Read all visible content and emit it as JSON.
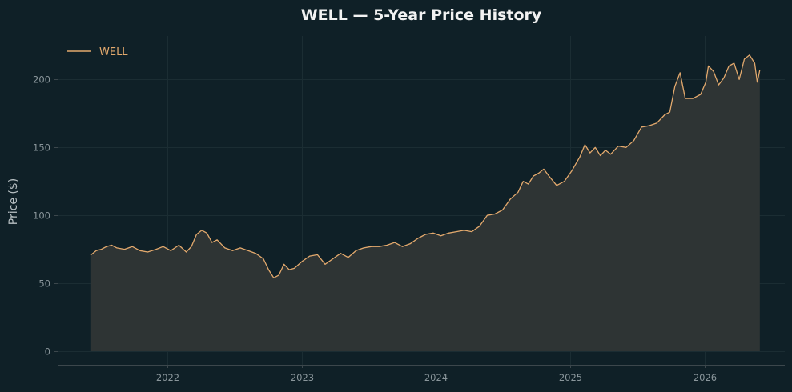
{
  "chart_data": {
    "type": "area",
    "title": "WELL — 5-Year Price History",
    "xlabel": "",
    "ylabel": "Price ($)",
    "x_ticks": [
      "2022",
      "2023",
      "2024",
      "2025",
      "2026"
    ],
    "y_ticks": [
      0,
      50,
      100,
      150,
      200
    ],
    "xlim": [
      "2021-03-08",
      "2026-08-08"
    ],
    "ylim": [
      -10,
      232
    ],
    "grid": true,
    "legend": "top-left",
    "colors": {
      "line": "#e3a96d",
      "fill": "#2e3434",
      "background": "#0f2027"
    },
    "series": [
      {
        "name": "WELL",
        "points": [
          [
            "2021-06-07",
            71
          ],
          [
            "2021-06-21",
            74
          ],
          [
            "2021-07-05",
            75
          ],
          [
            "2021-07-19",
            77
          ],
          [
            "2021-08-02",
            78
          ],
          [
            "2021-08-16",
            76
          ],
          [
            "2021-09-06",
            75
          ],
          [
            "2021-09-27",
            77
          ],
          [
            "2021-10-18",
            74
          ],
          [
            "2021-11-08",
            73
          ],
          [
            "2021-12-01",
            75
          ],
          [
            "2021-12-20",
            77
          ],
          [
            "2022-01-10",
            74
          ],
          [
            "2022-02-01",
            78
          ],
          [
            "2022-02-21",
            73
          ],
          [
            "2022-03-07",
            77
          ],
          [
            "2022-03-21",
            86
          ],
          [
            "2022-04-04",
            89
          ],
          [
            "2022-04-18",
            87
          ],
          [
            "2022-05-02",
            80
          ],
          [
            "2022-05-16",
            82
          ],
          [
            "2022-06-06",
            76
          ],
          [
            "2022-06-27",
            74
          ],
          [
            "2022-07-18",
            76
          ],
          [
            "2022-08-08",
            74
          ],
          [
            "2022-08-29",
            72
          ],
          [
            "2022-09-19",
            68
          ],
          [
            "2022-10-03",
            60
          ],
          [
            "2022-10-17",
            54
          ],
          [
            "2022-10-31",
            56
          ],
          [
            "2022-11-14",
            64
          ],
          [
            "2022-11-28",
            60
          ],
          [
            "2022-12-12",
            61
          ],
          [
            "2023-01-02",
            66
          ],
          [
            "2023-01-23",
            70
          ],
          [
            "2023-02-13",
            71
          ],
          [
            "2023-03-06",
            64
          ],
          [
            "2023-03-27",
            68
          ],
          [
            "2023-04-17",
            72
          ],
          [
            "2023-05-08",
            69
          ],
          [
            "2023-05-29",
            74
          ],
          [
            "2023-06-19",
            76
          ],
          [
            "2023-07-10",
            77
          ],
          [
            "2023-07-31",
            77
          ],
          [
            "2023-08-21",
            78
          ],
          [
            "2023-09-11",
            80
          ],
          [
            "2023-10-02",
            77
          ],
          [
            "2023-10-23",
            79
          ],
          [
            "2023-11-13",
            83
          ],
          [
            "2023-12-04",
            86
          ],
          [
            "2023-12-25",
            87
          ],
          [
            "2024-01-15",
            85
          ],
          [
            "2024-02-05",
            87
          ],
          [
            "2024-02-26",
            88
          ],
          [
            "2024-03-18",
            89
          ],
          [
            "2024-04-08",
            88
          ],
          [
            "2024-04-29",
            92
          ],
          [
            "2024-05-20",
            100
          ],
          [
            "2024-06-10",
            101
          ],
          [
            "2024-07-01",
            104
          ],
          [
            "2024-07-22",
            112
          ],
          [
            "2024-08-12",
            117
          ],
          [
            "2024-08-26",
            125
          ],
          [
            "2024-09-09",
            123
          ],
          [
            "2024-09-23",
            129
          ],
          [
            "2024-10-07",
            131
          ],
          [
            "2024-10-21",
            134
          ],
          [
            "2024-11-04",
            129
          ],
          [
            "2024-11-25",
            122
          ],
          [
            "2024-12-16",
            125
          ],
          [
            "2025-01-06",
            133
          ],
          [
            "2025-01-27",
            143
          ],
          [
            "2025-02-10",
            152
          ],
          [
            "2025-02-24",
            146
          ],
          [
            "2025-03-10",
            150
          ],
          [
            "2025-03-24",
            144
          ],
          [
            "2025-04-07",
            148
          ],
          [
            "2025-04-21",
            145
          ],
          [
            "2025-05-12",
            151
          ],
          [
            "2025-06-02",
            150
          ],
          [
            "2025-06-23",
            155
          ],
          [
            "2025-07-14",
            165
          ],
          [
            "2025-08-04",
            166
          ],
          [
            "2025-08-25",
            168
          ],
          [
            "2025-09-15",
            174
          ],
          [
            "2025-09-29",
            176
          ],
          [
            "2025-10-13",
            195
          ],
          [
            "2025-10-27",
            205
          ],
          [
            "2025-11-10",
            186
          ],
          [
            "2025-12-01",
            186
          ],
          [
            "2025-12-22",
            189
          ],
          [
            "2026-01-05",
            198
          ],
          [
            "2026-01-12",
            210
          ],
          [
            "2026-01-26",
            206
          ],
          [
            "2026-02-09",
            196
          ],
          [
            "2026-02-23",
            201
          ],
          [
            "2026-03-09",
            210
          ],
          [
            "2026-03-23",
            212
          ],
          [
            "2026-04-06",
            200
          ],
          [
            "2026-04-20",
            215
          ],
          [
            "2026-05-04",
            218
          ],
          [
            "2026-05-18",
            212
          ],
          [
            "2026-05-25",
            198
          ],
          [
            "2026-06-01",
            207
          ]
        ]
      }
    ]
  }
}
